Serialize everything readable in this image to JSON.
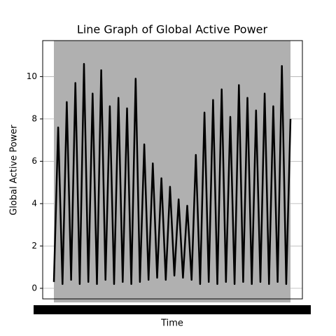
{
  "chart_data": {
    "type": "line",
    "title": "Line Graph of Global Active Power",
    "x_label": "Time",
    "y_label": "Global Active Power",
    "series": [
      {
        "name": "Global Active Power",
        "color": "#000000",
        "values": [
          0.3,
          7.6,
          0.2,
          8.8,
          0.4,
          9.7,
          0.2,
          10.6,
          0.3,
          9.2,
          0.2,
          10.3,
          0.4,
          8.6,
          0.2,
          9.0,
          0.3,
          8.5,
          0.2,
          9.9,
          0.3,
          6.8,
          0.4,
          5.9,
          0.5,
          5.2,
          0.4,
          4.8,
          0.6,
          4.2,
          0.5,
          3.9,
          0.4,
          6.3,
          0.2,
          8.3,
          0.3,
          8.9,
          0.2,
          9.4,
          0.3,
          8.1,
          0.2,
          9.6,
          0.3,
          9.0,
          0.2,
          8.4,
          0.3,
          9.2,
          0.2,
          8.6,
          0.3,
          10.5,
          0.2,
          8.0
        ]
      }
    ],
    "ylim": [
      -0.5,
      11.7
    ],
    "yticks": [
      0,
      2,
      4,
      6,
      8,
      10
    ],
    "grid": true
  }
}
